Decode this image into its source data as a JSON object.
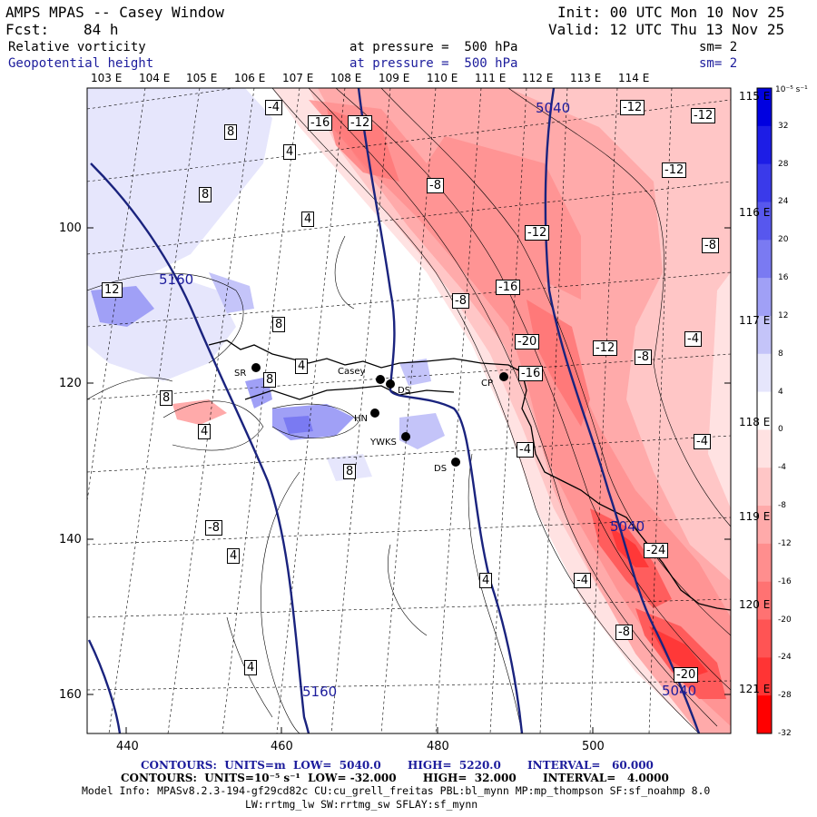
{
  "header": {
    "title": "AMPS MPAS -- Casey Window",
    "fcst_label": "Fcst:",
    "fcst_value": "84 h",
    "init": "Init: 00 UTC Mon 10 Nov 25",
    "valid": "Valid: 12 UTC Thu 13 Nov 25",
    "field1": {
      "name": "Relative vorticity",
      "level": "at pressure =  500 hPa",
      "sm": "sm= 2"
    },
    "field2": {
      "name": "Geopotential height",
      "level": "at pressure =  500 hPa",
      "sm": "sm= 2"
    }
  },
  "lon_labels_top": [
    "103 E",
    "104 E",
    "105 E",
    "106 E",
    "107 E",
    "108 E",
    "109 E",
    "110 E",
    "111 E",
    "112 E",
    "113 E",
    "114 E"
  ],
  "lon_labels_right": [
    "115 E",
    "116 E",
    "117 E",
    "118 E",
    "119 E",
    "120 E",
    "121 E"
  ],
  "y_axis_labels": [
    "100",
    "120",
    "140",
    "160"
  ],
  "x_axis_labels": [
    "440",
    "460",
    "480",
    "500"
  ],
  "stations": [
    {
      "name": "SR"
    },
    {
      "name": "Casey"
    },
    {
      "name": "DS"
    },
    {
      "name": "HN"
    },
    {
      "name": "YWKS"
    },
    {
      "name": "DS"
    },
    {
      "name": "CP"
    }
  ],
  "height_contour_labels": [
    "5040",
    "5160",
    "5160",
    "5040",
    "5040"
  ],
  "vorticity_contour_labels": [
    "-4",
    "-16",
    "-12",
    "8",
    "4",
    "-12",
    "-12",
    "-8",
    "8",
    "-12",
    "4",
    "-12",
    "-8",
    "12",
    "-16",
    "-8",
    "8",
    "-20",
    "-12",
    "-4",
    "8",
    "-16",
    "-8",
    "4",
    "8",
    "-4",
    "4",
    "8",
    "-4",
    "-8",
    "4",
    "4",
    "-4",
    "-24",
    "-8",
    "4",
    "-20"
  ],
  "colorbar": {
    "unit": "10⁻⁵ s⁻¹",
    "labels": [
      "32",
      "28",
      "24",
      "20",
      "16",
      "12",
      "8",
      "4",
      "0",
      "-4",
      "-8",
      "-12",
      "-16",
      "-20",
      "-24",
      "-28",
      "-32"
    ],
    "colors": [
      "#0000e0",
      "#1d1de6",
      "#3a3aea",
      "#5757ee",
      "#7a7af2",
      "#a0a0f6",
      "#c4c4f9",
      "#e6e6fc",
      "#ffffff",
      "#ffe2e2",
      "#ffc6c6",
      "#ffaaaa",
      "#ff8e8e",
      "#ff7272",
      "#ff5454",
      "#ff3434",
      "#ff0000"
    ]
  },
  "footer": {
    "contours_height": "CONTOURS:  UNITS=m  LOW=  5040.0       HIGH=  5220.0       INTERVAL=   60.000",
    "contours_vort": "CONTOURS:  UNITS=10⁻⁵ s⁻¹  LOW= -32.000       HIGH=  32.000       INTERVAL=   4.0000",
    "model_info_1": "Model Info: MPASv8.2.3-194-gf29cd82c CU:cu_grell_freitas PBL:bl_mynn MP:mp_thompson SF:sf_noahmp 8.0",
    "model_info_2": "LW:rrtmg_lw SW:rrtmg_sw SFLAY:sf_mynn"
  }
}
